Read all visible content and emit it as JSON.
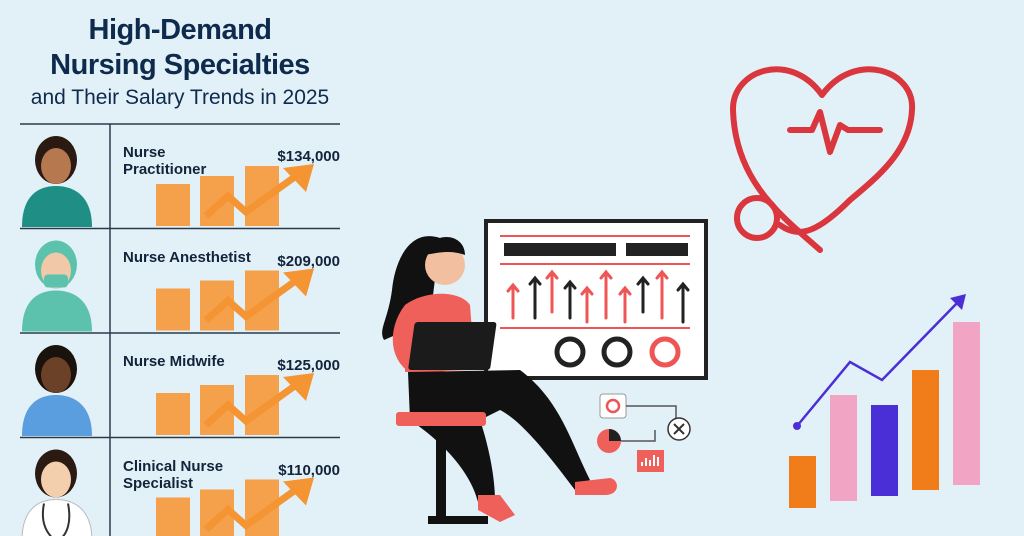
{
  "header": {
    "title_lines": [
      "High-Demand",
      "Nursing Specialties"
    ],
    "subtitle": "and Their Salary Trends in 2025"
  },
  "specialties": [
    {
      "name": "Nurse Practitioner",
      "salary": "$134,000"
    },
    {
      "name": "Nurse Anesthetist",
      "salary": "$209,000"
    },
    {
      "name": "Nurse Midwife",
      "salary": "$125,000"
    },
    {
      "name": "Clinical Nurse Specialist",
      "salary": "$110,000"
    }
  ]
}
